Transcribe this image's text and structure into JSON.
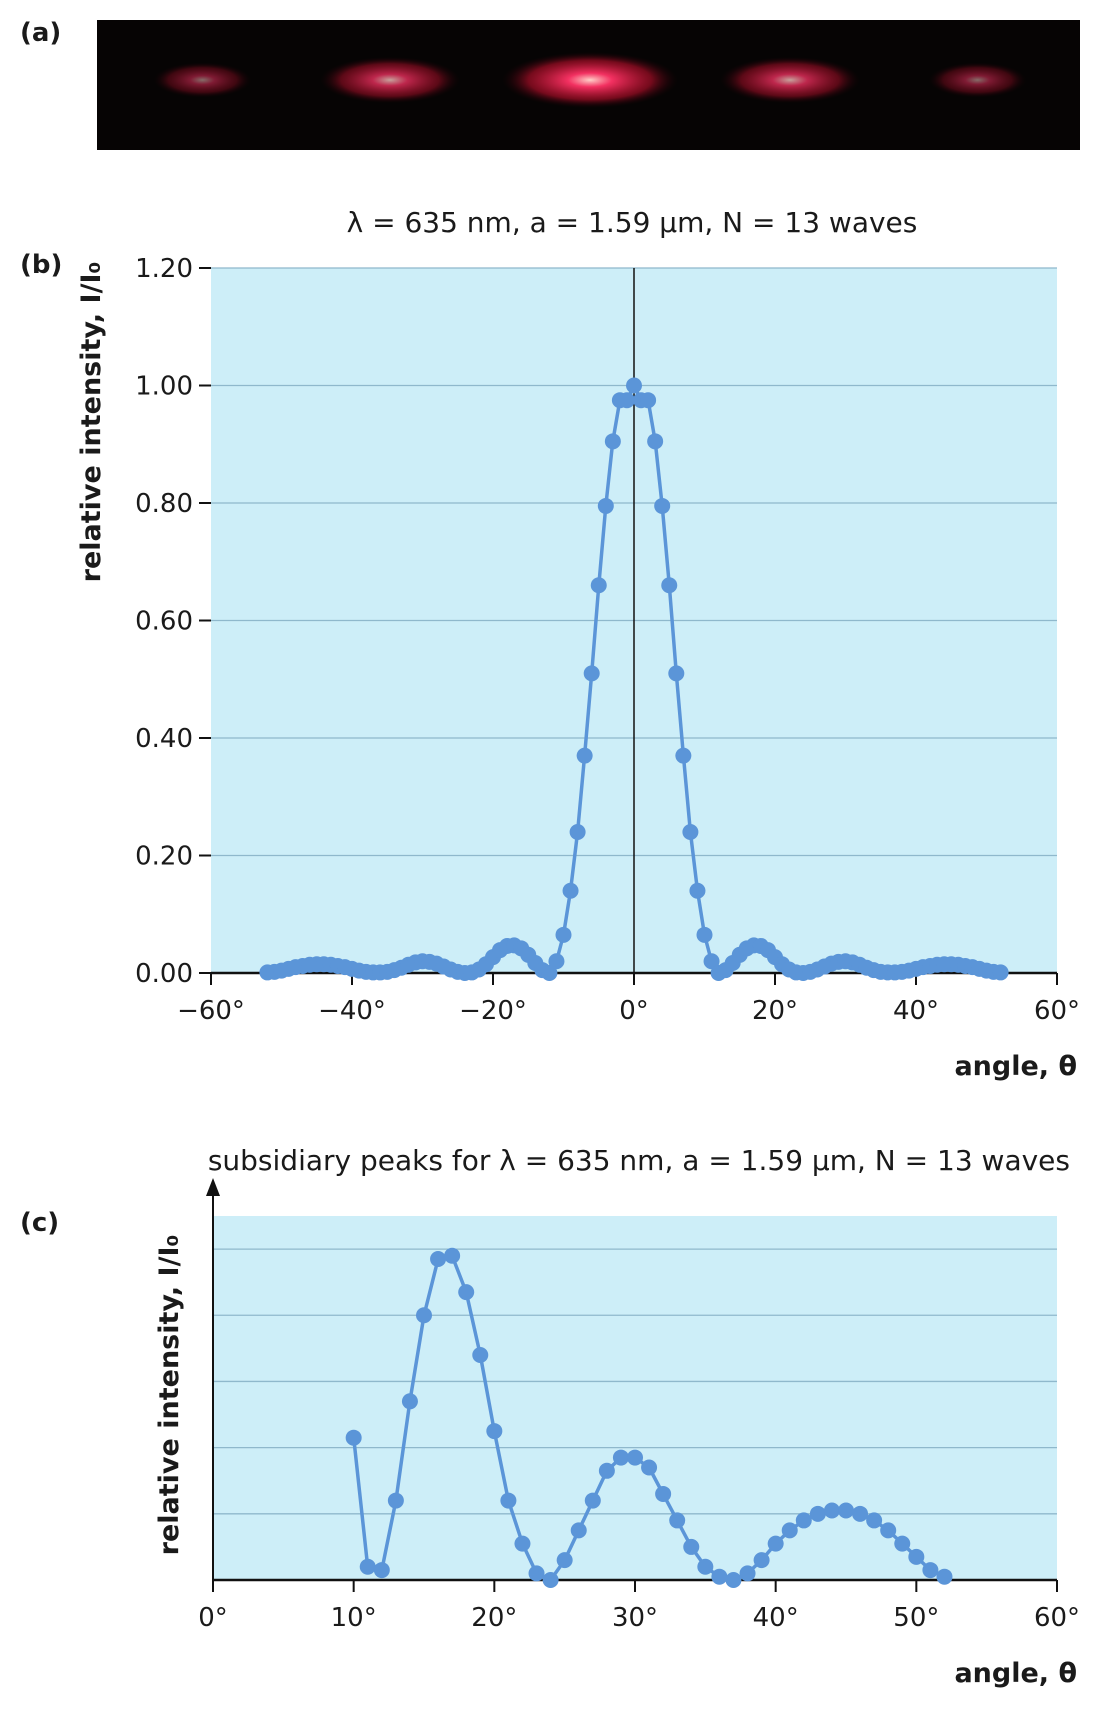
{
  "panels": {
    "a": "(a)",
    "b": "(b)",
    "c": "(c)"
  },
  "colors": {
    "plot_bg": "#cdeef8",
    "grid": "#8fb8cc",
    "series": "#5b95d8",
    "fringe_bg": "#060404",
    "fringe_core": "#ff3366"
  },
  "fringe": {
    "spots": [
      {
        "x_deg": -45,
        "strength": 0.15
      },
      {
        "x_deg": -31,
        "strength": 0.35
      },
      {
        "x_deg": -16,
        "strength": 0.7
      },
      {
        "x_deg": 0,
        "strength": 1.0
      },
      {
        "x_deg": 16,
        "strength": 0.7
      },
      {
        "x_deg": 31,
        "strength": 0.35
      },
      {
        "x_deg": 45,
        "strength": 0.15
      }
    ]
  },
  "chart_data": [
    {
      "type": "line",
      "title": "λ = 635 nm, a = 1.59 μm, N = 13 waves",
      "xlabel": "angle, θ",
      "ylabel": "relative intensity, I/I₀",
      "xlim": [
        -60,
        60
      ],
      "ylim": [
        0,
        1.2
      ],
      "xticks": [
        "−60°",
        "−40°",
        "−20°",
        "0°",
        "20°",
        "40°",
        "60°"
      ],
      "xtick_values": [
        -60,
        -40,
        -20,
        0,
        20,
        40,
        60
      ],
      "yticks": [
        "0.00",
        "0.20",
        "0.40",
        "0.60",
        "0.80",
        "1.00",
        "1.20"
      ],
      "ytick_values": [
        0,
        0.2,
        0.4,
        0.6,
        0.8,
        1.0,
        1.2
      ],
      "grid": "horizontal",
      "x": [
        -52,
        -51,
        -50,
        -49,
        -48,
        -47,
        -46,
        -45,
        -44,
        -43,
        -42,
        -41,
        -40,
        -39,
        -38,
        -37,
        -36,
        -35,
        -34,
        -33,
        -32,
        -31,
        -30,
        -29,
        -28,
        -27,
        -26,
        -25,
        -24,
        -23,
        -22,
        -21,
        -20,
        -19,
        -18,
        -17,
        -16,
        -15,
        -14,
        -13,
        -12,
        -11,
        -10,
        -9,
        -8,
        -7,
        -6,
        -5,
        -4,
        -3,
        -2,
        -1,
        0,
        1,
        2,
        3,
        4,
        5,
        6,
        7,
        8,
        9,
        10,
        11,
        12,
        13,
        14,
        15,
        16,
        17,
        18,
        19,
        20,
        21,
        22,
        23,
        24,
        25,
        26,
        27,
        28,
        29,
        30,
        31,
        32,
        33,
        34,
        35,
        36,
        37,
        38,
        39,
        40,
        41,
        42,
        43,
        44,
        45,
        46,
        47,
        48,
        49,
        50,
        51,
        52
      ],
      "y": [
        0.001,
        0.002,
        0.004,
        0.007,
        0.01,
        0.012,
        0.014,
        0.015,
        0.015,
        0.014,
        0.012,
        0.01,
        0.007,
        0.004,
        0.002,
        0.001,
        0.001,
        0.002,
        0.005,
        0.009,
        0.014,
        0.018,
        0.02,
        0.019,
        0.016,
        0.011,
        0.006,
        0.002,
        0.0,
        0.001,
        0.006,
        0.015,
        0.027,
        0.039,
        0.046,
        0.047,
        0.042,
        0.031,
        0.017,
        0.005,
        0.0,
        0.02,
        0.065,
        0.14,
        0.24,
        0.37,
        0.51,
        0.66,
        0.795,
        0.905,
        0.975,
        0.975,
        1.0,
        0.975,
        0.975,
        0.905,
        0.795,
        0.66,
        0.51,
        0.37,
        0.24,
        0.14,
        0.065,
        0.02,
        0.0,
        0.005,
        0.017,
        0.031,
        0.042,
        0.047,
        0.046,
        0.039,
        0.027,
        0.015,
        0.006,
        0.001,
        0.0,
        0.002,
        0.006,
        0.011,
        0.016,
        0.019,
        0.02,
        0.018,
        0.014,
        0.009,
        0.005,
        0.002,
        0.001,
        0.001,
        0.002,
        0.004,
        0.007,
        0.01,
        0.012,
        0.014,
        0.015,
        0.015,
        0.014,
        0.012,
        0.01,
        0.007,
        0.004,
        0.002,
        0.001
      ]
    },
    {
      "type": "line",
      "title": "subsidiary peaks for λ = 635 nm, a = 1.59 μm, N = 13 waves",
      "xlabel": "angle, θ",
      "ylabel": "relative intensity, I/I₀",
      "xlim": [
        0,
        60
      ],
      "ylim": [
        0,
        0.055
      ],
      "xticks": [
        "0°",
        "10°",
        "20°",
        "30°",
        "40°",
        "50°",
        "60°"
      ],
      "xtick_values": [
        0,
        10,
        20,
        30,
        40,
        50,
        60
      ],
      "yticks": [],
      "grid": "horizontal",
      "grid_values": [
        0.01,
        0.02,
        0.03,
        0.04,
        0.05
      ],
      "x": [
        10,
        11,
        12,
        13,
        14,
        15,
        16,
        17,
        18,
        19,
        20,
        21,
        22,
        23,
        24,
        25,
        26,
        27,
        28,
        29,
        30,
        31,
        32,
        33,
        34,
        35,
        36,
        37,
        38,
        39,
        40,
        41,
        42,
        43,
        44,
        45,
        46,
        47,
        48,
        49,
        50,
        51,
        52
      ],
      "y": [
        0.0215,
        0.002,
        0.0015,
        0.012,
        0.027,
        0.04,
        0.0485,
        0.049,
        0.0435,
        0.034,
        0.0225,
        0.012,
        0.0055,
        0.001,
        0.0,
        0.003,
        0.0075,
        0.012,
        0.0165,
        0.0185,
        0.0185,
        0.017,
        0.013,
        0.009,
        0.005,
        0.002,
        0.0005,
        0.0,
        0.001,
        0.003,
        0.0055,
        0.0075,
        0.009,
        0.01,
        0.0105,
        0.0105,
        0.01,
        0.009,
        0.0075,
        0.0055,
        0.0035,
        0.0015,
        0.0005
      ]
    }
  ]
}
